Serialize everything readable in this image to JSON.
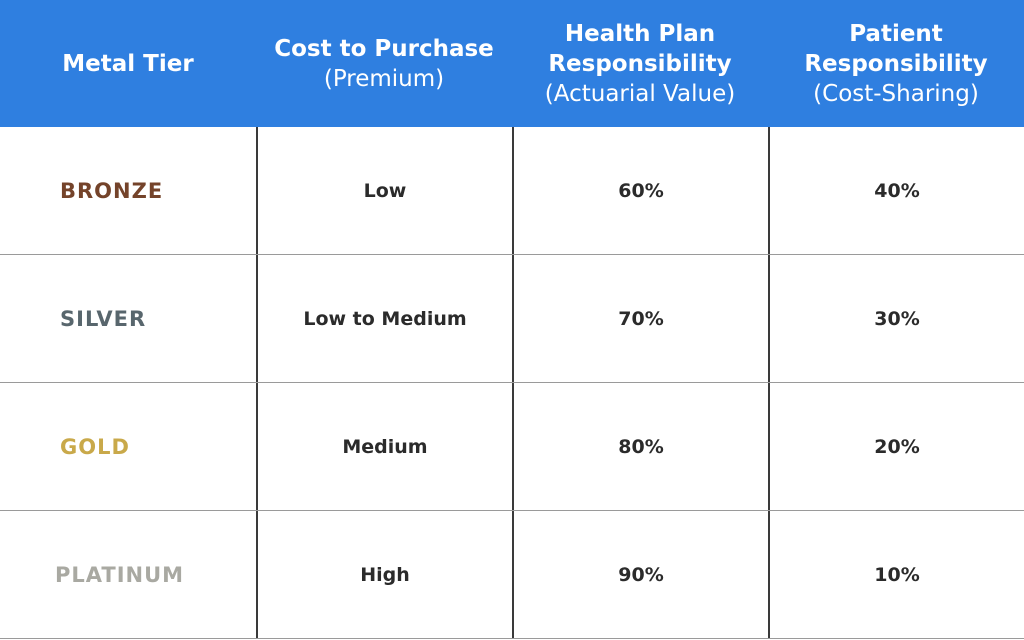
{
  "table": {
    "header": [
      {
        "title": "Metal Tier"
      },
      {
        "title": "Cost to Purchase",
        "subtitle": "(Premium)"
      },
      {
        "title": "Health Plan Responsibility",
        "subtitle": "(Actuarial Value)"
      },
      {
        "title": "Patient Responsibility",
        "subtitle": "(Cost-Sharing)"
      }
    ],
    "rows": [
      [
        "BRONZE",
        "Low",
        "60%",
        "40%"
      ],
      [
        "SILVER",
        "Low to Medium",
        "70%",
        "30%"
      ],
      [
        "GOLD",
        "Medium",
        "80%",
        "20%"
      ],
      [
        "PLATINUM",
        "High",
        "90%",
        "10%"
      ]
    ]
  }
}
